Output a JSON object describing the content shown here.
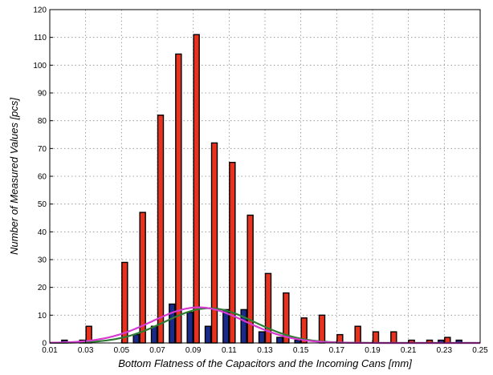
{
  "chart_data": {
    "type": "bar",
    "title": "",
    "xlabel": "Bottom Flatness of the Capacitors and the Incoming Cans [mm]",
    "ylabel": "Number of Measured Values [pcs]",
    "xlim": [
      0.01,
      0.25
    ],
    "ylim": [
      0,
      120
    ],
    "grid": true,
    "x_ticks": [
      "0.01",
      "0.03",
      "0.05",
      "0.07",
      "0.09",
      "0.11",
      "0.13",
      "0.15",
      "0.17",
      "0.19",
      "0.21",
      "0.23",
      "0.25"
    ],
    "y_ticks": [
      "0",
      "10",
      "20",
      "30",
      "40",
      "50",
      "60",
      "70",
      "80",
      "90",
      "100",
      "110",
      "120"
    ],
    "categories": [
      0.02,
      0.03,
      0.04,
      0.05,
      0.06,
      0.07,
      0.08,
      0.09,
      0.1,
      0.11,
      0.12,
      0.13,
      0.14,
      0.15,
      0.16,
      0.17,
      0.18,
      0.19,
      0.2,
      0.21,
      0.22,
      0.23,
      0.24
    ],
    "series": [
      {
        "color": "#1a2a8c",
        "values": [
          1,
          1,
          0,
          0,
          3,
          6,
          14,
          11,
          6,
          12,
          12,
          4,
          2,
          1,
          0,
          0,
          0,
          0,
          0,
          0,
          0,
          1,
          1
        ]
      },
      {
        "color": "#e8321e",
        "values": [
          0,
          6,
          0,
          29,
          47,
          82,
          104,
          111,
          72,
          65,
          46,
          25,
          18,
          9,
          10,
          3,
          6,
          4,
          4,
          1,
          1,
          2,
          0
        ]
      }
    ],
    "curves": [
      {
        "color": "#2e7d32",
        "type": "normal",
        "mean": 0.099,
        "sd": 0.025,
        "peak": 12.5
      },
      {
        "color": "#d63ad0",
        "type": "normal",
        "mean": 0.093,
        "sd": 0.026,
        "peak": 12.8
      }
    ]
  }
}
